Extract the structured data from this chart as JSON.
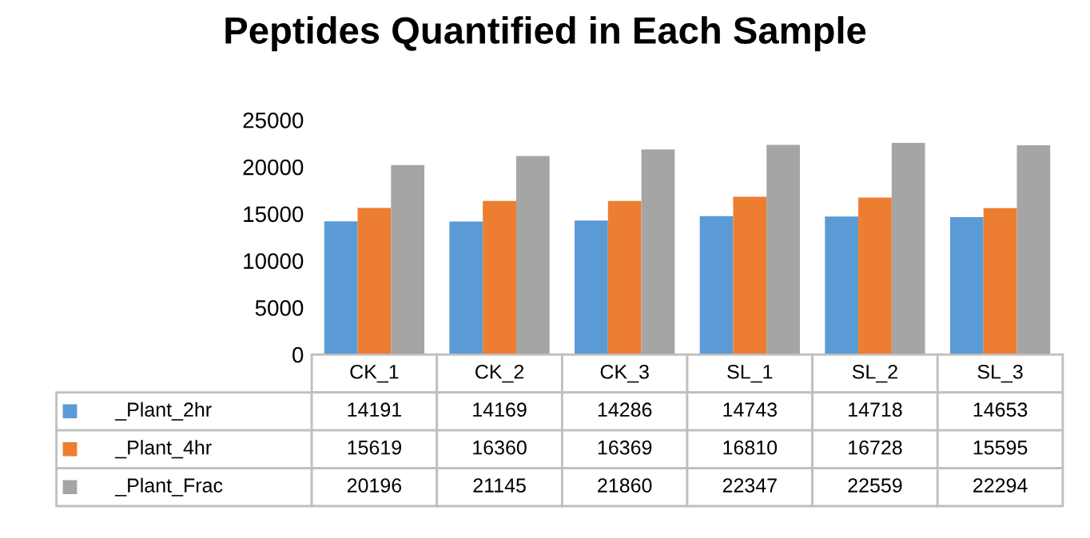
{
  "chart_data": {
    "type": "bar",
    "title": "Peptides Quantified in Each Sample",
    "categories": [
      "CK_1",
      "CK_2",
      "CK_3",
      "SL_1",
      "SL_2",
      "SL_3"
    ],
    "series": [
      {
        "name": "_Plant_2hr",
        "color": "#5b9bd5",
        "values": [
          14191,
          14169,
          14286,
          14743,
          14718,
          14653
        ]
      },
      {
        "name": "_Plant_4hr",
        "color": "#ed7d31",
        "values": [
          15619,
          16360,
          16369,
          16810,
          16728,
          15595
        ]
      },
      {
        "name": "_Plant_Frac",
        "color": "#a5a5a5",
        "values": [
          20196,
          21145,
          21860,
          22347,
          22559,
          22294
        ]
      }
    ],
    "ylim": [
      0,
      25000
    ],
    "yticks": [
      0,
      5000,
      10000,
      15000,
      20000,
      25000
    ],
    "grid": false,
    "legend": "bottom",
    "data_labels": true
  }
}
